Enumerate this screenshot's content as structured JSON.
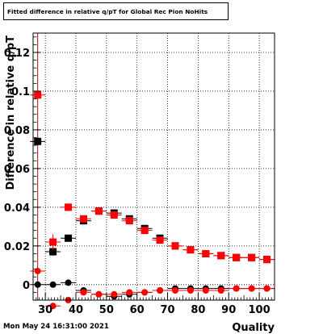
{
  "chart_data": {
    "type": "scatter",
    "title": "Fitted difference in relative q/pT for Global Rec Pion NoHits",
    "xlabel": "Quality",
    "ylabel": "Difference in relative q/pT",
    "xlim": [
      26,
      105
    ],
    "ylim": [
      -0.008,
      0.13
    ],
    "x_ticks": [
      30,
      40,
      50,
      60,
      70,
      80,
      90,
      100
    ],
    "y_ticks": [
      0,
      0.02,
      0.04,
      0.06,
      0.08,
      0.1,
      0.12
    ],
    "y_tick_labels": [
      "0",
      "0.02",
      "0.04",
      "0.06",
      "0.08",
      "0.1",
      "0.12"
    ],
    "grid": true,
    "vertical_marker_x": 27.5,
    "series": [
      {
        "marker": "square",
        "color": "#000000",
        "x": [
          27.5,
          32.5,
          37.5,
          42.5,
          47.5,
          52.5,
          57.5,
          62.5,
          67.5,
          72.5,
          77.5,
          82.5,
          87.5,
          92.5,
          97.5,
          102.5
        ],
        "y": [
          0.074,
          0.017,
          0.024,
          0.033,
          0.038,
          0.037,
          0.034,
          0.029,
          0.024,
          0.02,
          0.018,
          0.016,
          0.015,
          0.014,
          0.014,
          0.013
        ],
        "yerr": [
          0.002,
          0.002,
          0.001,
          0.001,
          0.001,
          0.001,
          0.001,
          0.001,
          0.001,
          0.001,
          0.001,
          0.001,
          0.001,
          0.001,
          0.001,
          0.001
        ]
      },
      {
        "marker": "square",
        "color": "#ff0000",
        "x": [
          27.5,
          32.5,
          37.5,
          42.5,
          47.5,
          52.5,
          57.5,
          62.5,
          67.5,
          72.5,
          77.5,
          82.5,
          87.5,
          92.5,
          97.5,
          102.5
        ],
        "y": [
          0.098,
          0.022,
          0.04,
          0.034,
          0.038,
          0.036,
          0.033,
          0.028,
          0.023,
          0.02,
          0.018,
          0.016,
          0.015,
          0.014,
          0.014,
          0.013
        ],
        "yerr": [
          0.002,
          0.004,
          0.002,
          0.001,
          0.001,
          0.001,
          0.001,
          0.001,
          0.001,
          0.001,
          0.001,
          0.001,
          0.001,
          0.001,
          0.001,
          0.001
        ]
      },
      {
        "marker": "circle",
        "color": "#000000",
        "x": [
          27.5,
          32.5,
          37.5,
          42.5,
          47.5,
          52.5,
          57.5,
          62.5,
          67.5,
          72.5,
          77.5,
          82.5,
          87.5,
          92.5,
          97.5,
          102.5
        ],
        "y": [
          0.0,
          0.0,
          0.001,
          -0.003,
          -0.005,
          -0.006,
          -0.005,
          -0.004,
          -0.003,
          -0.002,
          -0.002,
          -0.002,
          -0.002,
          -0.002,
          -0.002,
          -0.002
        ],
        "yerr": [
          0.001,
          0.001,
          0.001,
          0.001,
          0.001,
          0.001,
          0.001,
          0.001,
          0.001,
          0.001,
          0.001,
          0.001,
          0.001,
          0.001,
          0.001,
          0.001
        ]
      },
      {
        "marker": "circle",
        "color": "#ff0000",
        "x": [
          27.5,
          32.5,
          37.5,
          42.5,
          47.5,
          52.5,
          57.5,
          62.5,
          67.5,
          72.5,
          77.5,
          82.5,
          87.5,
          92.5,
          97.5,
          102.5
        ],
        "y": [
          0.007,
          -0.011,
          -0.008,
          -0.004,
          -0.005,
          -0.005,
          -0.004,
          -0.004,
          -0.003,
          -0.003,
          -0.003,
          -0.003,
          -0.003,
          -0.002,
          -0.002,
          -0.002
        ],
        "yerr": [
          0.001,
          0.001,
          0.001,
          0.001,
          0.001,
          0.001,
          0.001,
          0.001,
          0.001,
          0.001,
          0.001,
          0.001,
          0.001,
          0.001,
          0.001,
          0.001
        ]
      }
    ]
  },
  "footer": {
    "date_label": "Mon May 24 16:31:00 2021"
  }
}
